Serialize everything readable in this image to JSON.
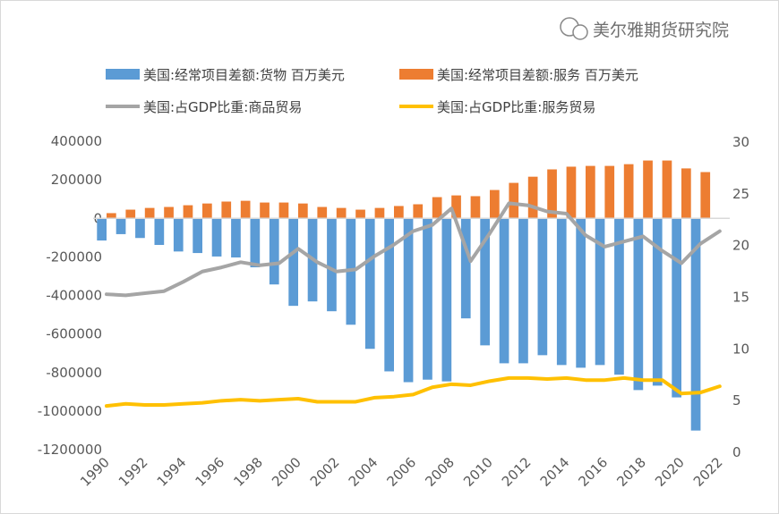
{
  "chart_data": {
    "type": "bar",
    "categories": [
      "1990",
      "1991",
      "1992",
      "1993",
      "1994",
      "1995",
      "1996",
      "1997",
      "1998",
      "1999",
      "2000",
      "2001",
      "2002",
      "2003",
      "2004",
      "2005",
      "2006",
      "2007",
      "2008",
      "2009",
      "2010",
      "2011",
      "2012",
      "2013",
      "2014",
      "2015",
      "2016",
      "2017",
      "2018",
      "2019",
      "2020",
      "2021",
      "2022"
    ],
    "x_tick_labels": [
      "1990",
      "1992",
      "1994",
      "1996",
      "1998",
      "2000",
      "2002",
      "2004",
      "2006",
      "2008",
      "2010",
      "2012",
      "2014",
      "2016",
      "2018",
      "2020",
      "2022"
    ],
    "series": [
      {
        "name": "美国:经常项目差额:货物 百万美元",
        "type": "bar",
        "axis": "left",
        "color": "#5B9BD5",
        "values": [
          -115000,
          -82000,
          -102000,
          -138000,
          -172000,
          -180000,
          -198000,
          -203000,
          -254000,
          -343000,
          -454000,
          -431000,
          -482000,
          -552000,
          -677000,
          -794000,
          -850000,
          -837000,
          -846000,
          -519000,
          -659000,
          -752000,
          -752000,
          -710000,
          -761000,
          -775000,
          -761000,
          -811000,
          -891000,
          -868000,
          -929000,
          -1101000,
          null
        ]
      },
      {
        "name": "美国:经常项目差额:服务 百万美元",
        "type": "bar",
        "axis": "left",
        "color": "#ED7D31",
        "values": [
          27000,
          45000,
          54000,
          59000,
          68000,
          77000,
          87000,
          91000,
          82000,
          82000,
          77000,
          59000,
          54000,
          45000,
          54000,
          64000,
          73000,
          110000,
          119000,
          115000,
          147000,
          184000,
          216000,
          254000,
          268000,
          272000,
          272000,
          281000,
          300000,
          300000,
          259000,
          240000,
          null
        ]
      },
      {
        "name": "美国:占GDP比重:商品贸易",
        "type": "line",
        "axis": "right",
        "color": "#A5A5A5",
        "values": [
          15.2,
          15.1,
          15.3,
          15.5,
          16.4,
          17.4,
          17.8,
          18.3,
          18.0,
          18.2,
          19.6,
          18.3,
          17.4,
          17.6,
          18.9,
          20.0,
          21.3,
          21.9,
          23.5,
          18.4,
          21.1,
          24.0,
          23.8,
          23.2,
          23.0,
          20.9,
          19.8,
          20.3,
          20.8,
          19.4,
          18.2,
          20.1,
          21.3
        ]
      },
      {
        "name": "美国:占GDP比重:服务贸易",
        "type": "line",
        "axis": "right",
        "color": "#FFC000",
        "values": [
          4.4,
          4.6,
          4.5,
          4.5,
          4.6,
          4.7,
          4.9,
          5.0,
          4.9,
          5.0,
          5.1,
          4.8,
          4.8,
          4.8,
          5.2,
          5.3,
          5.5,
          6.2,
          6.5,
          6.4,
          6.8,
          7.1,
          7.1,
          7.0,
          7.1,
          6.9,
          6.9,
          7.1,
          6.9,
          6.9,
          5.6,
          5.7,
          6.3
        ]
      }
    ],
    "left_axis": {
      "ylim": [
        -1200000,
        400000
      ],
      "ticks": [
        "400000",
        "200000",
        "0",
        "-200000",
        "-400000",
        "-600000",
        "-800000",
        "-1000000",
        "-1200000"
      ]
    },
    "right_axis": {
      "ylim": [
        0,
        30
      ],
      "ticks": [
        "30",
        "25",
        "20",
        "15",
        "10",
        "5",
        "0"
      ]
    },
    "grid": false,
    "legend_placement": "top"
  },
  "watermark": {
    "text": "美尔雅期货研究院",
    "icon": "wechat-icon"
  }
}
